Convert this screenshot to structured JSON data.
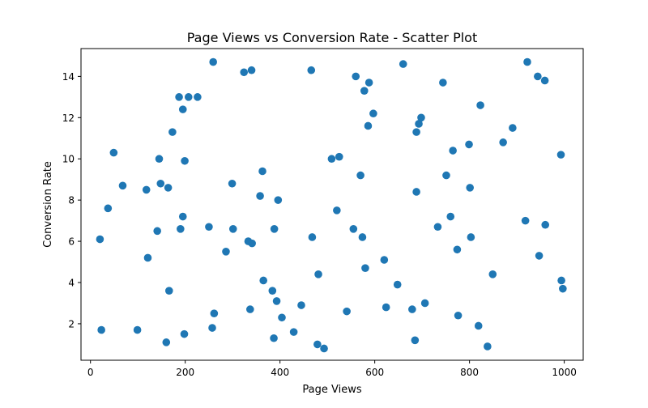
{
  "chart_data": {
    "type": "scatter",
    "title": "Page Views vs Conversion Rate - Scatter Plot",
    "xlabel": "Page Views",
    "ylabel": "Conversion Rate",
    "xlim": [
      -20,
      1040
    ],
    "ylim": [
      0.23,
      15.35
    ],
    "xticks": [
      0,
      200,
      400,
      600,
      800,
      1000
    ],
    "yticks": [
      2,
      4,
      6,
      8,
      10,
      12,
      14
    ],
    "grid": false,
    "marker_color": "#1f77b4",
    "points": [
      [
        20,
        6.1
      ],
      [
        23,
        1.7
      ],
      [
        37,
        7.6
      ],
      [
        49,
        10.3
      ],
      [
        68,
        8.7
      ],
      [
        99,
        1.7
      ],
      [
        118,
        8.5
      ],
      [
        121,
        5.2
      ],
      [
        141,
        6.5
      ],
      [
        145,
        10.0
      ],
      [
        148,
        8.8
      ],
      [
        160,
        1.1
      ],
      [
        164,
        8.6
      ],
      [
        166,
        3.6
      ],
      [
        173,
        11.3
      ],
      [
        187,
        13.0
      ],
      [
        190,
        6.6
      ],
      [
        195,
        7.2
      ],
      [
        195,
        12.4
      ],
      [
        198,
        1.5
      ],
      [
        199,
        9.9
      ],
      [
        207,
        13.0
      ],
      [
        226,
        13.0
      ],
      [
        250,
        6.7
      ],
      [
        257,
        1.8
      ],
      [
        259,
        14.7
      ],
      [
        261,
        2.5
      ],
      [
        286,
        5.5
      ],
      [
        299,
        8.8
      ],
      [
        301,
        6.6
      ],
      [
        324,
        14.2
      ],
      [
        333,
        6.0
      ],
      [
        337,
        2.7
      ],
      [
        340,
        14.3
      ],
      [
        341,
        5.9
      ],
      [
        358,
        8.2
      ],
      [
        363,
        9.4
      ],
      [
        365,
        4.1
      ],
      [
        384,
        3.6
      ],
      [
        387,
        1.3
      ],
      [
        388,
        6.6
      ],
      [
        393,
        3.1
      ],
      [
        396,
        8.0
      ],
      [
        404,
        2.3
      ],
      [
        429,
        1.6
      ],
      [
        445,
        2.9
      ],
      [
        466,
        14.3
      ],
      [
        468,
        6.2
      ],
      [
        479,
        1.0
      ],
      [
        481,
        4.4
      ],
      [
        493,
        0.8
      ],
      [
        509,
        10.0
      ],
      [
        520,
        7.5
      ],
      [
        525,
        10.1
      ],
      [
        541,
        2.6
      ],
      [
        555,
        6.6
      ],
      [
        560,
        14.0
      ],
      [
        570,
        9.2
      ],
      [
        574,
        6.2
      ],
      [
        578,
        13.3
      ],
      [
        580,
        4.7
      ],
      [
        586,
        11.6
      ],
      [
        588,
        13.7
      ],
      [
        597,
        12.2
      ],
      [
        620,
        5.1
      ],
      [
        624,
        2.8
      ],
      [
        648,
        3.9
      ],
      [
        660,
        14.6
      ],
      [
        679,
        2.7
      ],
      [
        685,
        1.2
      ],
      [
        688,
        8.4
      ],
      [
        688,
        11.3
      ],
      [
        693,
        11.7
      ],
      [
        698,
        12.0
      ],
      [
        706,
        3.0
      ],
      [
        733,
        6.7
      ],
      [
        744,
        13.7
      ],
      [
        751,
        9.2
      ],
      [
        760,
        7.2
      ],
      [
        765,
        10.4
      ],
      [
        774,
        5.6
      ],
      [
        776,
        2.4
      ],
      [
        799,
        10.7
      ],
      [
        801,
        8.6
      ],
      [
        803,
        6.2
      ],
      [
        819,
        1.9
      ],
      [
        823,
        12.6
      ],
      [
        838,
        0.9
      ],
      [
        849,
        4.4
      ],
      [
        871,
        10.8
      ],
      [
        891,
        11.5
      ],
      [
        918,
        7.0
      ],
      [
        922,
        14.7
      ],
      [
        944,
        14.0
      ],
      [
        947,
        5.3
      ],
      [
        959,
        13.8
      ],
      [
        960,
        6.8
      ],
      [
        993,
        10.2
      ],
      [
        994,
        4.1
      ],
      [
        997,
        3.7
      ]
    ]
  }
}
